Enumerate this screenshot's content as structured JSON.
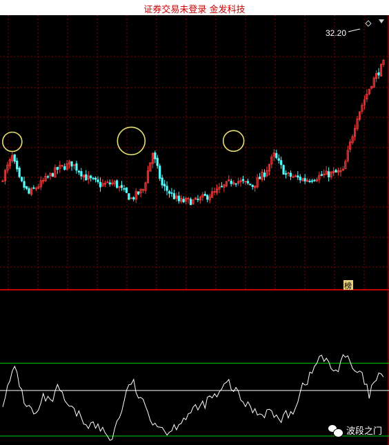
{
  "title_bar": {
    "text": "证券交易未登录  金发科技"
  },
  "colors": {
    "up": "#ff3b3b",
    "down": "#54ffff",
    "grid": "#8a0000",
    "separator": "#c80000",
    "osc_line": "#ffffff",
    "band": "#00d000",
    "mid": "#ffffff",
    "marker": "#e8e070"
  },
  "panel_tag": "榜",
  "watermark": {
    "text": "波段之门",
    "icon": "wechat-icon"
  },
  "chart_data": [
    {
      "type": "candlestick",
      "title": "",
      "price_label": "32.20",
      "icon": "diamond-icon",
      "ylim": [
        4,
        33
      ],
      "highlight_circles": [
        {
          "index": 5,
          "price": 18.5
        },
        {
          "index": 64,
          "price": 18.6
        },
        {
          "index": 115,
          "price": 18.6
        }
      ]
    },
    {
      "type": "line",
      "title": "",
      "ylim": [
        0,
        100
      ],
      "band_levels": [
        80,
        50,
        0
      ]
    }
  ]
}
